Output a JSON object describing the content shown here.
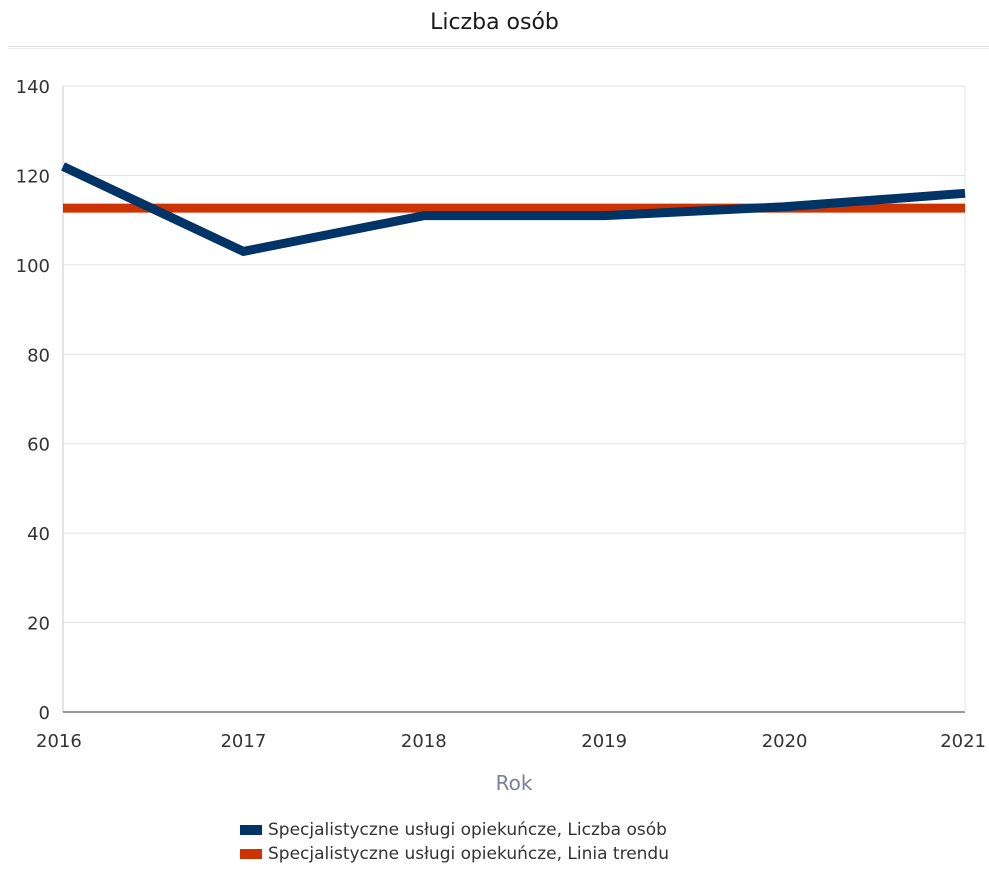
{
  "chart_data": {
    "type": "line",
    "title": "Liczba osób",
    "xlabel": "Rok",
    "ylabel": "",
    "x": [
      2016,
      2017,
      2018,
      2019,
      2020,
      2021
    ],
    "xlim": [
      2016,
      2021
    ],
    "ylim": [
      0,
      140
    ],
    "yticks": [
      0,
      20,
      40,
      60,
      80,
      100,
      120,
      140
    ],
    "grid": true,
    "legend": "bottom",
    "series": [
      {
        "name": "Specjalistyczne usługi opiekuńcze, Liczba osób",
        "values": [
          122,
          103,
          111,
          111,
          113,
          116
        ],
        "color": "#003366"
      },
      {
        "name": "Specjalistyczne usługi opiekuńcze, Linia trendu",
        "values": [
          112.7,
          112.7,
          112.7,
          112.7,
          112.7,
          112.7
        ],
        "color": "#cc3300"
      }
    ]
  }
}
